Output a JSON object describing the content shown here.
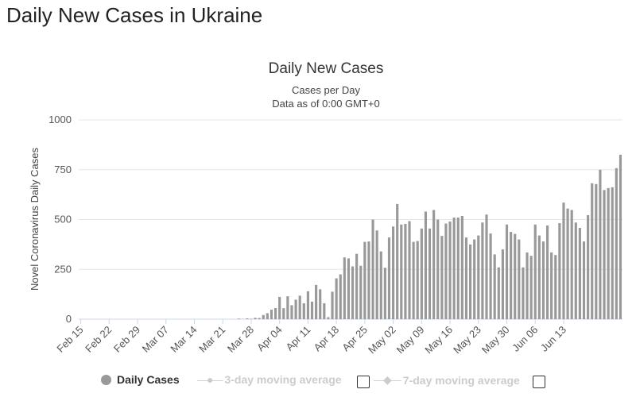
{
  "page": {
    "title": "Daily New Cases in Ukraine"
  },
  "chart_data": {
    "type": "bar",
    "title": "Daily New Cases",
    "subtitle": "Cases per Day",
    "subtitle2": "Data as of 0:00 GMT+0",
    "ylabel": "Novel Coronavirus Daily Cases",
    "xlabel": "",
    "ylim": [
      0,
      1000
    ],
    "yticks": [
      0,
      250,
      500,
      750,
      1000
    ],
    "xtick_labels": [
      "Feb 15",
      "Feb 22",
      "Feb 29",
      "Mar 07",
      "Mar 14",
      "Mar 21",
      "Mar 28",
      "Apr 04",
      "Apr 11",
      "Apr 18",
      "Apr 25",
      "May 02",
      "May 09",
      "May 16",
      "May 23",
      "May 30",
      "Jun 06",
      "Jun 13"
    ],
    "start_date": "Feb 15",
    "series": [
      {
        "name": "Daily Cases",
        "color": "#999999",
        "values": [
          0,
          0,
          0,
          0,
          0,
          0,
          0,
          0,
          0,
          0,
          0,
          0,
          0,
          0,
          0,
          0,
          0,
          0,
          0,
          0,
          0,
          0,
          0,
          0,
          0,
          0,
          0,
          0,
          0,
          0,
          0,
          0,
          0,
          0,
          0,
          0,
          0,
          0,
          0,
          3,
          1,
          4,
          2,
          7,
          6,
          21,
          30,
          48,
          56,
          112,
          55,
          115,
          70,
          98,
          118,
          80,
          140,
          88,
          172,
          150,
          80,
          10,
          138,
          205,
          225,
          310,
          305,
          265,
          328,
          268,
          388,
          390,
          500,
          445,
          340,
          258,
          410,
          465,
          578,
          475,
          478,
          492,
          388,
          392,
          455,
          540,
          455,
          548,
          500,
          418,
          480,
          490,
          510,
          510,
          518,
          410,
          375,
          400,
          420,
          485,
          525,
          430,
          325,
          260,
          350,
          475,
          438,
          428,
          400,
          260,
          335,
          318,
          475,
          420,
          390,
          470,
          335,
          322,
          482,
          585,
          555,
          548,
          485,
          458,
          390,
          522,
          682,
          678,
          750,
          648,
          658,
          662,
          758,
          825
        ]
      }
    ],
    "legend": [
      {
        "label": "Daily Cases",
        "active": true
      },
      {
        "label": "3-day moving average",
        "active": false
      },
      {
        "label": "7-day moving average",
        "active": false
      }
    ]
  }
}
